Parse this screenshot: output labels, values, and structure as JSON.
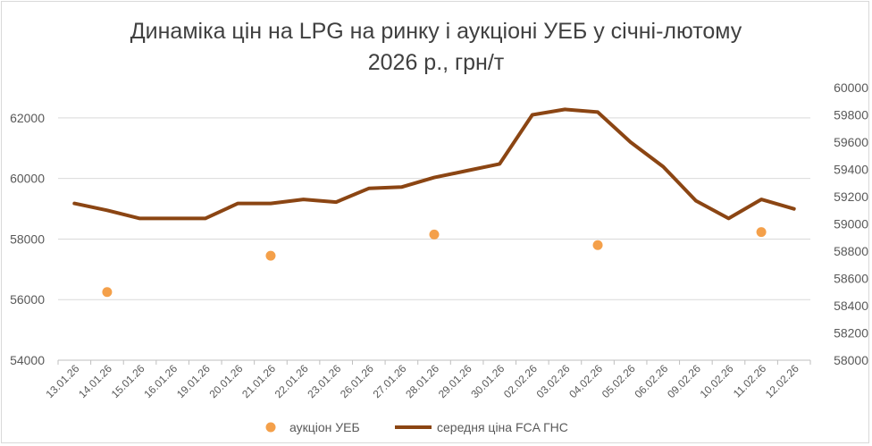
{
  "chart_data": {
    "type": "line",
    "title_line1": "Динаміка цін на LPG на ринку і аукціоні УЕБ у січні-лютому",
    "title_line2": "2026 р., грн/т",
    "categories": [
      "13.01.26",
      "14.01.26",
      "15.01.26",
      "16.01.26",
      "19.01.26",
      "20.01.26",
      "21.01.26",
      "22.01.26",
      "23.01.26",
      "26.01.26",
      "27.01.26",
      "28.01.26",
      "29.01.26",
      "30.01.26",
      "02.02.26",
      "03.02.26",
      "04.02.26",
      "05.02.26",
      "06.02.26",
      "09.02.26",
      "10.02.26",
      "11.02.26",
      "12.02.26"
    ],
    "y_left": {
      "min": 54000,
      "max": 63000,
      "ticks": [
        54000,
        56000,
        58000,
        60000,
        62000
      ]
    },
    "y_right": {
      "min": 58000,
      "max": 60000,
      "ticks": [
        58000,
        58200,
        58400,
        58600,
        58800,
        59000,
        59200,
        59400,
        59600,
        59800,
        60000
      ]
    },
    "grid": true,
    "legend_position": "bottom",
    "series": [
      {
        "name": "аукціон УЕБ",
        "kind": "scatter",
        "axis": "left",
        "color": "#f4a04a",
        "points": [
          {
            "x": "14.01.26",
            "y": 56250
          },
          {
            "x": "21.01.26",
            "y": 57450
          },
          {
            "x": "28.01.26",
            "y": 58150
          },
          {
            "x": "04.02.26",
            "y": 57800
          },
          {
            "x": "11.02.26",
            "y": 58230
          }
        ]
      },
      {
        "name": "середня ціна FCA ГНС",
        "kind": "line",
        "axis": "right",
        "color": "#8b4513",
        "values": [
          59150,
          59100,
          59040,
          59040,
          59040,
          59150,
          59150,
          59180,
          59160,
          59260,
          59270,
          59340,
          59390,
          59440,
          59800,
          59840,
          59820,
          59600,
          59420,
          59170,
          59040,
          59180,
          59110
        ]
      }
    ]
  }
}
